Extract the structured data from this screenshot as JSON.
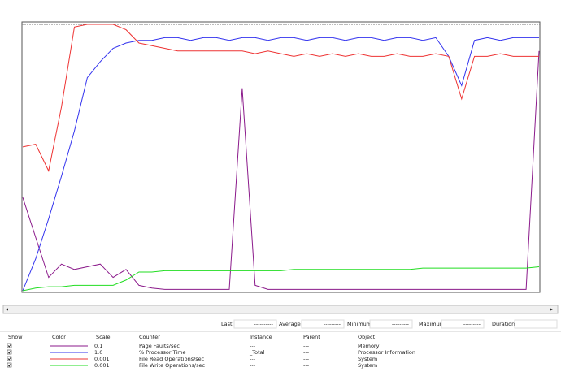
{
  "chart_data": {
    "type": "line",
    "x": [
      0,
      1,
      2,
      3,
      4,
      5,
      6,
      7,
      8,
      9,
      10,
      11,
      12,
      13,
      14,
      15,
      16,
      17,
      18,
      19,
      20,
      21,
      22,
      23,
      24,
      25,
      26,
      27,
      28,
      29,
      30,
      31,
      32,
      33,
      34,
      35,
      36,
      37,
      38,
      39,
      40
    ],
    "xlim": [
      0,
      40
    ],
    "ylim": [
      0,
      100
    ],
    "series": [
      {
        "color": "#8b1a8b",
        "values": [
          35,
          20,
          5,
          10,
          8,
          9,
          10,
          5,
          8,
          2,
          1,
          0.5,
          0.5,
          0.5,
          0.5,
          0.5,
          0.5,
          76,
          2,
          0.5,
          0.5,
          0.5,
          0.5,
          0.5,
          0.5,
          0.5,
          0.5,
          0.5,
          0.5,
          0.5,
          0.5,
          0.5,
          0.5,
          0.5,
          0.5,
          0.5,
          0.5,
          0.5,
          0.5,
          0.5,
          90
        ]
      },
      {
        "color": "#3333ee",
        "values": [
          0,
          12,
          27,
          43,
          60,
          80,
          86,
          91,
          93,
          94,
          94,
          95,
          95,
          94,
          95,
          95,
          94,
          95,
          95,
          94,
          95,
          95,
          94,
          95,
          95,
          94,
          95,
          95,
          94,
          95,
          95,
          94,
          95,
          88,
          77,
          94,
          95,
          94,
          95,
          95,
          95
        ]
      },
      {
        "color": "#ee3333",
        "values": [
          54,
          55,
          45,
          69,
          99,
          100,
          100,
          100,
          98,
          93,
          92,
          91,
          90,
          90,
          90,
          90,
          90,
          90,
          89,
          90,
          89,
          88,
          89,
          88,
          89,
          88,
          89,
          88,
          88,
          89,
          88,
          88,
          89,
          88,
          72,
          88,
          88,
          89,
          88,
          88,
          88
        ]
      },
      {
        "color": "#22dd22",
        "values": [
          0,
          1,
          1.5,
          1.5,
          2,
          2,
          2,
          2,
          4,
          7,
          7,
          7.5,
          7.5,
          7.5,
          7.5,
          7.5,
          7.5,
          7.5,
          7.5,
          7.5,
          7.5,
          8,
          8,
          8,
          8,
          8,
          8,
          8,
          8,
          8,
          8,
          8.5,
          8.5,
          8.5,
          8.5,
          8.5,
          8.5,
          8.5,
          8.5,
          8.5,
          9
        ]
      }
    ]
  },
  "stats": [
    {
      "label": "Last",
      "value": "----------"
    },
    {
      "label": "Average",
      "value": "---------"
    },
    {
      "label": "Minimum",
      "value": "---------"
    },
    {
      "label": "Maximum",
      "value": "---------"
    },
    {
      "label": "Duration",
      "value": ""
    }
  ],
  "table": {
    "headers": [
      "Show",
      "Color",
      "Scale",
      "Counter",
      "Instance",
      "Parent",
      "Object"
    ],
    "rows": [
      [
        "0.1",
        "Page Faults/sec",
        "---",
        "---",
        "Memory"
      ],
      [
        "1.0",
        "% Processor Time",
        "_Total",
        "---",
        "Processor Information"
      ],
      [
        "0.001",
        "File Read Operations/sec",
        "---",
        "---",
        "System"
      ],
      [
        "0.001",
        "File Write Operations/sec",
        "---",
        "---",
        "System"
      ]
    ]
  }
}
